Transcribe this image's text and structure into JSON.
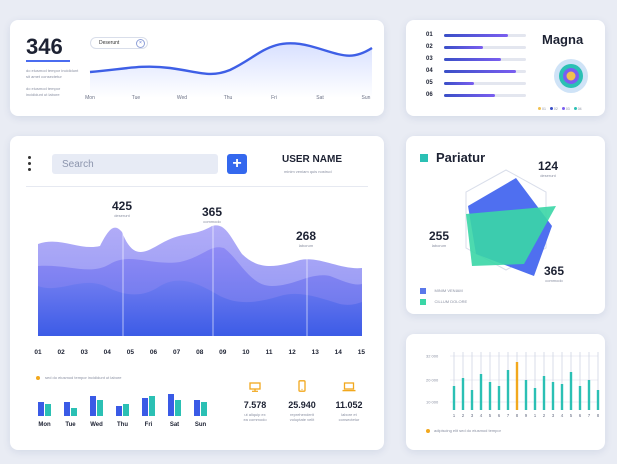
{
  "top_card": {
    "big_number": "346",
    "desc_1": "do eiusmod tempor incididunt",
    "desc_2": "sit amet consectetur",
    "desc_3": "do eiusmod tempor",
    "desc_4": "incididunt ut labore",
    "chip_label": "Deserunt",
    "days": [
      "Mon",
      "Tue",
      "Wed",
      "Thu",
      "Fri",
      "Sat",
      "Sun"
    ]
  },
  "magna_card": {
    "title": "Magna",
    "rows": [
      {
        "label": "01",
        "value": 0.78
      },
      {
        "label": "02",
        "value": 0.48
      },
      {
        "label": "03",
        "value": 0.7
      },
      {
        "label": "04",
        "value": 0.88
      },
      {
        "label": "05",
        "value": 0.36
      },
      {
        "label": "06",
        "value": 0.62
      }
    ],
    "legend": [
      "01",
      "02",
      "03",
      "04"
    ],
    "legend_colors": [
      "#f2c14e",
      "#3a4fc7",
      "#7a5ef0",
      "#2bc0b4"
    ]
  },
  "main_card": {
    "search_placeholder": "Search",
    "add_symbol": "+",
    "user_name": "USER NAME",
    "user_sub": "minim veniam quis nostrud",
    "peaks": [
      {
        "value": "425",
        "label": "deserunt"
      },
      {
        "value": "365",
        "label": "commodo"
      },
      {
        "value": "268",
        "label": "laborum"
      }
    ],
    "x_labels": [
      "01",
      "02",
      "03",
      "04",
      "05",
      "06",
      "07",
      "08",
      "09",
      "10",
      "11",
      "12",
      "13",
      "14",
      "15"
    ],
    "legend_text": "sed do eiusmod tempor incididunt ut labore",
    "bar_days": [
      "Mon",
      "Tue",
      "Wed",
      "Thu",
      "Fri",
      "Sat",
      "Sun"
    ],
    "stats": [
      {
        "icon": "monitor-icon",
        "value": "7.578",
        "sub_1": "ut aliquip ex",
        "sub_2": "ea commodo"
      },
      {
        "icon": "phone-icon",
        "value": "25.940",
        "sub_1": "reprehenderit",
        "sub_2": "voluptate velit"
      },
      {
        "icon": "laptop-icon",
        "value": "11.052",
        "sub_1": "labore et",
        "sub_2": "consectetur"
      }
    ],
    "accent_color": "#f2a81d"
  },
  "pariatur_card": {
    "title": "Pariatur",
    "v1": {
      "value": "124",
      "label": "deserunt"
    },
    "v2": {
      "value": "255",
      "label": "laborum"
    },
    "v3": {
      "value": "365",
      "label": "commodo"
    },
    "legend": [
      {
        "label": "MINIM VENIAM",
        "color": "#5a78ea"
      },
      {
        "label": "CILLUM DOLORE",
        "color": "#3ad6a6"
      }
    ]
  },
  "bottom_right_card": {
    "y_labels": [
      "32 000",
      "20 000",
      "10 000"
    ],
    "x_labels": [
      "1",
      "2",
      "3",
      "4",
      "5",
      "6",
      "7",
      "8",
      "9",
      "1",
      "2",
      "3",
      "4",
      "5",
      "6",
      "7",
      "8"
    ],
    "legend_text": "adipiscing elit sed do eiusmod tempor"
  }
}
